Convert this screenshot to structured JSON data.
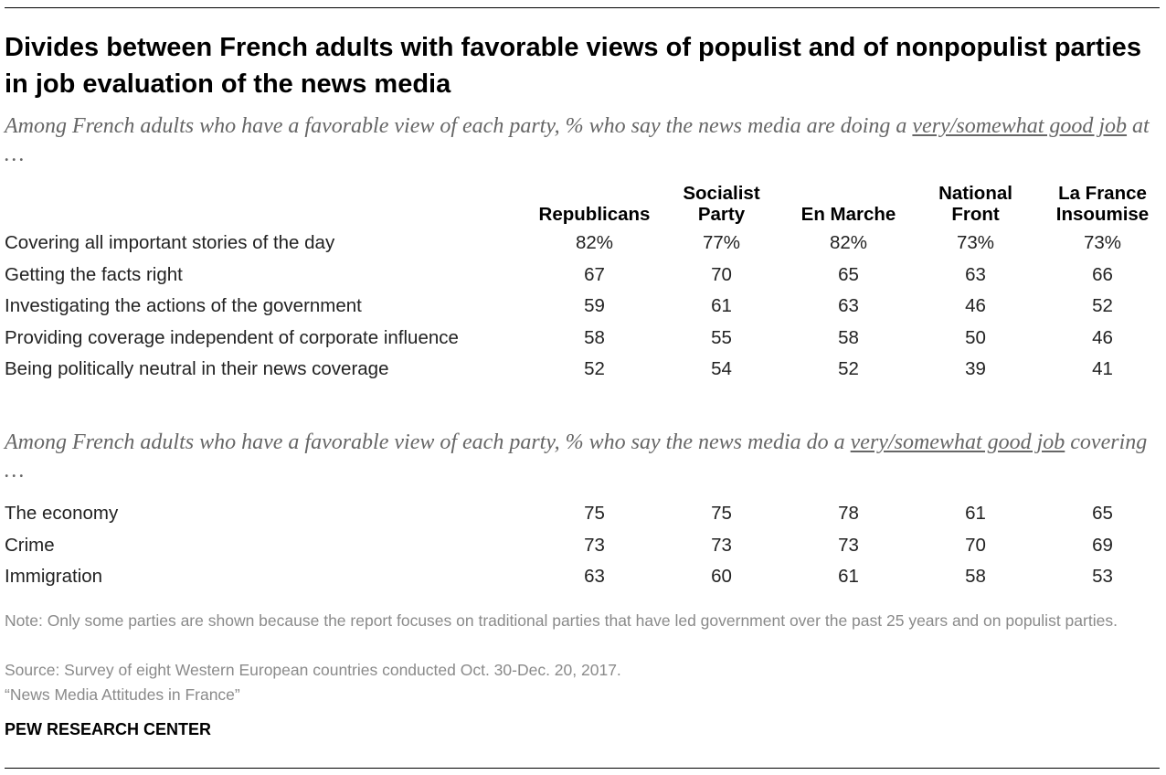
{
  "title": "Divides between French adults with favorable views of populist and of nonpopulist parties in job evaluation of the news media",
  "subtitle1": {
    "before": "Among French adults who have a favorable view of each party, % who say the news media are doing a ",
    "underlined": "very/somewhat good job",
    "after": " at …"
  },
  "subtitle2": {
    "before": "Among French adults who have a favorable view of each party, % who say the news media do a ",
    "underlined": "very/somewhat good job",
    "after": " covering …"
  },
  "chart_data": {
    "type": "table",
    "columns": [
      "Republicans",
      "Socialist Party",
      "En Marche",
      "National Front",
      "La France Insoumise"
    ],
    "column_lines": [
      [
        "Republicans"
      ],
      [
        "Socialist",
        "Party"
      ],
      [
        "En Marche"
      ],
      [
        "National",
        "Front"
      ],
      [
        "La France",
        "Insoumise"
      ]
    ],
    "section1": [
      {
        "label": "Covering all important stories of the day",
        "values": [
          "82%",
          "77%",
          "82%",
          "73%",
          "73%"
        ]
      },
      {
        "label": "Getting the facts right",
        "values": [
          "67",
          "70",
          "65",
          "63",
          "66"
        ]
      },
      {
        "label": "Investigating the actions of the government",
        "values": [
          "59",
          "61",
          "63",
          "46",
          "52"
        ]
      },
      {
        "label": "Providing coverage independent of corporate influence",
        "values": [
          "58",
          "55",
          "58",
          "50",
          "46"
        ]
      },
      {
        "label": "Being politically neutral in their news coverage",
        "values": [
          "52",
          "54",
          "52",
          "39",
          "41"
        ]
      }
    ],
    "section2": [
      {
        "label": "The economy",
        "values": [
          "75",
          "75",
          "78",
          "61",
          "65"
        ]
      },
      {
        "label": "Crime",
        "values": [
          "73",
          "73",
          "73",
          "70",
          "69"
        ]
      },
      {
        "label": "Immigration",
        "values": [
          "63",
          "60",
          "61",
          "58",
          "53"
        ]
      }
    ]
  },
  "note": "Note: Only some parties are shown because the report focuses on traditional parties that have led government over the past 25 years and on populist parties.",
  "source": "Source: Survey of eight Western European countries conducted Oct. 30-Dec. 20, 2017.",
  "report": "“News Media Attitudes in France”",
  "brand": "PEW RESEARCH CENTER"
}
